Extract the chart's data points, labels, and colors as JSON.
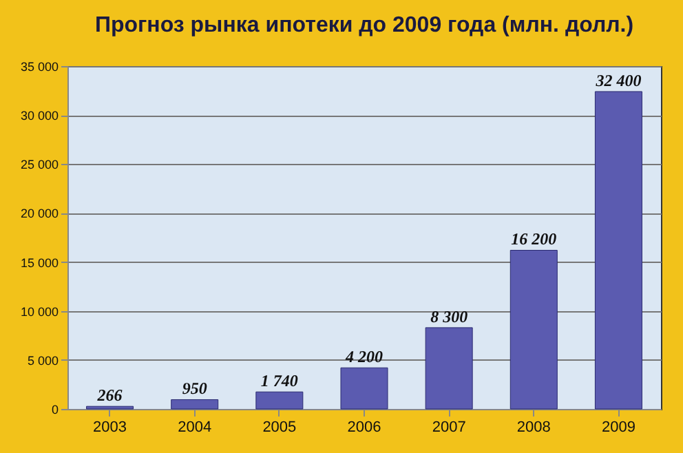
{
  "chart_data": {
    "type": "bar",
    "title": "Прогноз рынка ипотеки до 2009 года (млн. долл.)",
    "categories": [
      "2003",
      "2004",
      "2005",
      "2006",
      "2007",
      "2008",
      "2009"
    ],
    "values": [
      266,
      950,
      1740,
      4200,
      8300,
      16200,
      32400
    ],
    "value_labels": [
      "266",
      "950",
      "1 740",
      "4 200",
      "8 300",
      "16 200",
      "32 400"
    ],
    "color": "#5b5bb0",
    "ylim": [
      0,
      35000
    ],
    "yticks": [
      0,
      {
        "value": 5000,
        "label": "5 000"
      },
      {
        "value": 10000,
        "label": "10 000"
      },
      {
        "value": 15000,
        "label": "15 000"
      },
      {
        "value": 20000,
        "label": "20 000"
      },
      {
        "value": 25000,
        "label": "25 000"
      },
      {
        "value": 30000,
        "label": "30 000"
      },
      {
        "value": 35000,
        "label": "35 000"
      }
    ],
    "grid": "y"
  }
}
